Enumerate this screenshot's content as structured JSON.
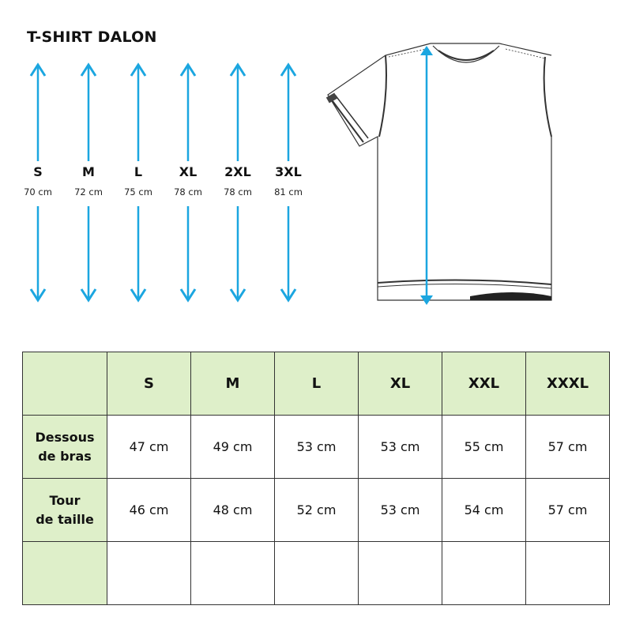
{
  "title": "T-SHIRT DALON",
  "colors": {
    "arrow": "#1ba6e0",
    "table_header_bg": "#deefc9",
    "border": "#333333"
  },
  "lengths": [
    {
      "size": "S",
      "length": "70 cm"
    },
    {
      "size": "M",
      "length": "72 cm"
    },
    {
      "size": "L",
      "length": "75 cm"
    },
    {
      "size": "XL",
      "length": "78 cm"
    },
    {
      "size": "2XL",
      "length": "78 cm"
    },
    {
      "size": "3XL",
      "length": "81 cm"
    }
  ],
  "table": {
    "headers": [
      "",
      "S",
      "M",
      "L",
      "XL",
      "XXL",
      "XXXL"
    ],
    "rows": [
      {
        "label_line1": "Dessous",
        "label_line2": "de bras",
        "values": [
          "47 cm",
          "49 cm",
          "53 cm",
          "53 cm",
          "55 cm",
          "57 cm"
        ]
      },
      {
        "label_line1": "Tour",
        "label_line2": "de taille",
        "values": [
          "46 cm",
          "48 cm",
          "52 cm",
          "53 cm",
          "54 cm",
          "57 cm"
        ]
      },
      {
        "label_line1": "",
        "label_line2": "",
        "values": [
          "",
          "",
          "",
          "",
          "",
          ""
        ]
      }
    ]
  }
}
